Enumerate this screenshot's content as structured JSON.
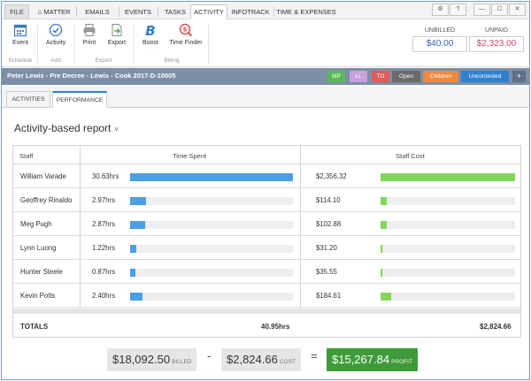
{
  "menu": {
    "tabs": [
      {
        "label": "FILE"
      },
      {
        "label": "MATTER"
      },
      {
        "label": "EMAILS"
      },
      {
        "label": "EVENTS"
      },
      {
        "label": "TASKS"
      },
      {
        "label": "ACTIVITY"
      },
      {
        "label": "INFOTRACK"
      },
      {
        "label": "TIME & EXPENSES"
      }
    ],
    "window_buttons": [
      "⚙",
      "?",
      "—",
      "☐",
      "✕"
    ]
  },
  "ribbon": {
    "buttons": {
      "event": "Event",
      "activity": "Activity",
      "print": "Print",
      "export": "Export",
      "boost": "Boost",
      "time_finder": "Time Finder"
    },
    "groups": {
      "schedule": "Schedule",
      "add": "Add",
      "export": "Export",
      "billing": "Billing"
    },
    "unbilled": {
      "label": "UNBILLED",
      "value": "$40.00"
    },
    "unpaid": {
      "label": "UNPAID",
      "value": "$2,323.00"
    }
  },
  "matter": {
    "title": "Peter Lewis - Pre Decree - Lewis - Cook 2017-D-10005",
    "pills": [
      {
        "label": "MP",
        "color": "#5cb85c"
      },
      {
        "label": "LL",
        "color": "#c9a0dc"
      },
      {
        "label": "TO",
        "color": "#e05a5a"
      },
      {
        "label": "Open",
        "color": "#6b6b6b"
      },
      {
        "label": "Children",
        "color": "#f0883e"
      },
      {
        "label": "Uncontested",
        "color": "#2f80d0"
      }
    ],
    "add_label": "+"
  },
  "subtabs": [
    {
      "label": "ACTIVITIES"
    },
    {
      "label": "PERFORMANCE"
    }
  ],
  "report": {
    "title": "Activity-based report",
    "caret": "˅",
    "headers": {
      "staff": "Staff",
      "time": "Time Spent",
      "cost": "Staff Cost"
    },
    "max_hours": 30.63,
    "max_cost": 2356.32,
    "rows": [
      {
        "name": "William Varade",
        "hours_label": "30.63hrs",
        "hours": 30.63,
        "cost_label": "$2,356.32",
        "cost": 2356.32
      },
      {
        "name": "Geoffrey Rinaldo",
        "hours_label": "2.97hrs",
        "hours": 2.97,
        "cost_label": "$114.10",
        "cost": 114.1
      },
      {
        "name": "Meg Pugh",
        "hours_label": "2.87hrs",
        "hours": 2.87,
        "cost_label": "$102.88",
        "cost": 102.88
      },
      {
        "name": "Lynn Luong",
        "hours_label": "1.22hrs",
        "hours": 1.22,
        "cost_label": "$31.20",
        "cost": 31.2
      },
      {
        "name": "Hunter  Steele",
        "hours_label": "0.87hrs",
        "hours": 0.87,
        "cost_label": "$35.55",
        "cost": 35.55
      },
      {
        "name": "Kevin Potts",
        "hours_label": "2.40hrs",
        "hours": 2.4,
        "cost_label": "$184.61",
        "cost": 184.61
      }
    ],
    "totals": {
      "label": "TOTALS",
      "hours": "40.95hrs",
      "cost": "$2,824.66"
    },
    "colors": {
      "time_bar": "#4a9fe8",
      "cost_bar": "#82d65a"
    }
  },
  "summary": {
    "billed": {
      "value": "$18,092.50",
      "label": "BILLED"
    },
    "minus": "-",
    "cost": {
      "value": "$2,824.66",
      "label": "COST"
    },
    "equals": "=",
    "profit": {
      "value": "$15,267.84",
      "label": "PROFIT"
    }
  }
}
